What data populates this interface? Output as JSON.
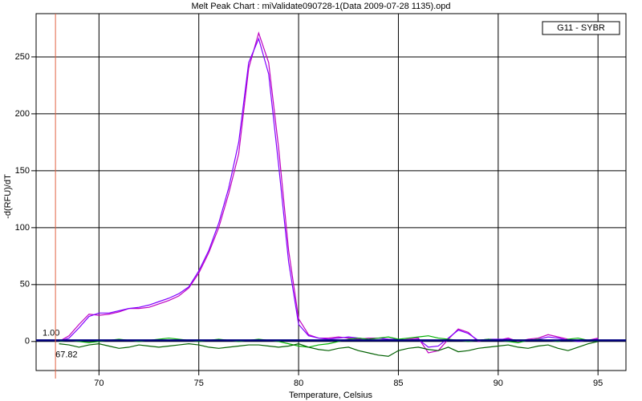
{
  "chart_data": {
    "type": "line",
    "title": "Melt Peak Chart : miValidate090728-1(Data 2009-07-28 1135).opd",
    "x_label": "Temperature, Celsius",
    "y_label": "-d(RFU)/dT",
    "legend_title": "G11 - SYBR",
    "legend": "top-right",
    "grid": true,
    "xlim": [
      66.85,
      96.4
    ],
    "ylim": [
      -25.5,
      288
    ],
    "xticks": [
      70,
      75,
      80,
      85,
      90,
      95
    ],
    "yticks": [
      0,
      50,
      100,
      150,
      200,
      250
    ],
    "threshold": {
      "value": 1,
      "label": "1.00",
      "color": "#000080"
    },
    "marker_x": {
      "value": 67.82,
      "label": "67.82",
      "color": "#e06040"
    },
    "x": [
      68,
      68.5,
      69,
      69.5,
      70,
      70.5,
      71,
      71.5,
      72,
      72.5,
      73,
      73.5,
      74,
      74.5,
      75,
      75.5,
      76,
      76.5,
      77,
      77.5,
      78,
      78.5,
      79,
      79.5,
      80,
      80.5,
      81,
      81.5,
      82,
      82.5,
      83,
      83.5,
      84,
      84.5,
      85,
      85.5,
      86,
      86.5,
      87,
      87.5,
      88,
      88.5,
      89,
      89.5,
      90,
      90.5,
      91,
      91.5,
      92,
      92.5,
      93,
      93.5,
      94,
      94.5,
      95
    ],
    "series": [
      {
        "color": "#c000c0",
        "values": [
          0,
          5,
          15,
          24,
          23,
          24,
          26,
          29,
          29,
          30,
          33,
          36,
          40,
          47,
          60,
          78,
          100,
          130,
          165,
          240,
          271,
          245,
          170,
          80,
          20,
          6,
          3,
          3,
          4,
          3,
          2,
          3,
          3,
          2,
          1,
          2,
          3,
          -10,
          -8,
          2,
          11,
          8,
          0,
          2,
          1,
          3,
          0,
          2,
          3,
          6,
          4,
          2,
          0,
          1,
          3
        ]
      },
      {
        "color": "#8000ff",
        "values": [
          0,
          3,
          12,
          22,
          25,
          25,
          27,
          29,
          30,
          32,
          35,
          38,
          42,
          48,
          62,
          80,
          104,
          135,
          175,
          245,
          266,
          235,
          155,
          70,
          15,
          5,
          3,
          2,
          3,
          4,
          3,
          2,
          3,
          2,
          2,
          1,
          2,
          -5,
          -4,
          3,
          10,
          7,
          1,
          2,
          2,
          2,
          1,
          1,
          2,
          4,
          3,
          1,
          0,
          1,
          2
        ]
      },
      {
        "color": "#00b000",
        "values": [
          0,
          1,
          0,
          -1,
          0,
          1,
          2,
          1,
          0,
          1,
          2,
          3,
          2,
          1,
          0,
          1,
          2,
          1,
          0,
          1,
          2,
          1,
          0,
          -2,
          -4,
          -5,
          -3,
          -2,
          0,
          2,
          3,
          2,
          3,
          4,
          2,
          3,
          4,
          5,
          3,
          2,
          1,
          0,
          1,
          2,
          1,
          0,
          -1,
          1,
          2,
          1,
          0,
          2,
          3,
          1,
          0
        ]
      },
      {
        "color": "#006000",
        "values": [
          -2,
          -3,
          -5,
          -3,
          -2,
          -4,
          -6,
          -5,
          -3,
          -4,
          -5,
          -4,
          -3,
          -2,
          -3,
          -5,
          -6,
          -5,
          -4,
          -3,
          -3,
          -4,
          -5,
          -4,
          -2,
          -5,
          -7,
          -8,
          -6,
          -5,
          -8,
          -10,
          -12,
          -13,
          -8,
          -6,
          -5,
          -7,
          -8,
          -5,
          -9,
          -8,
          -6,
          -5,
          -4,
          -3,
          -5,
          -6,
          -4,
          -3,
          -6,
          -8,
          -5,
          -2,
          0
        ]
      }
    ]
  }
}
